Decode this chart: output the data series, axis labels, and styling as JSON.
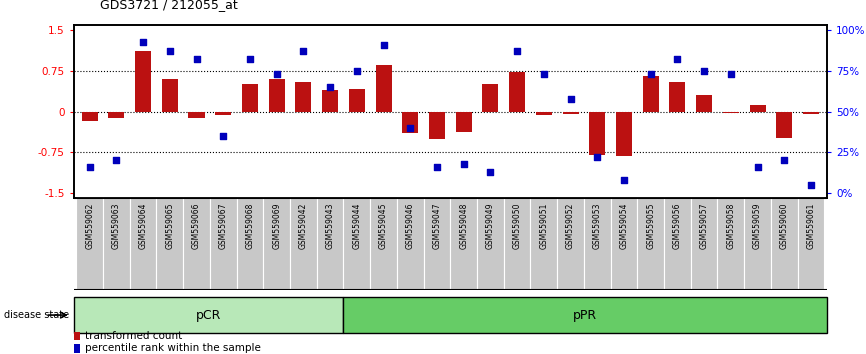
{
  "title": "GDS3721 / 212055_at",
  "samples": [
    "GSM559062",
    "GSM559063",
    "GSM559064",
    "GSM559065",
    "GSM559066",
    "GSM559067",
    "GSM559068",
    "GSM559069",
    "GSM559042",
    "GSM559043",
    "GSM559044",
    "GSM559045",
    "GSM559046",
    "GSM559047",
    "GSM559048",
    "GSM559049",
    "GSM559050",
    "GSM559051",
    "GSM559052",
    "GSM559053",
    "GSM559054",
    "GSM559055",
    "GSM559056",
    "GSM559057",
    "GSM559058",
    "GSM559059",
    "GSM559060",
    "GSM559061"
  ],
  "transformed_count": [
    -0.18,
    -0.12,
    1.12,
    0.6,
    -0.12,
    -0.06,
    0.5,
    0.6,
    0.55,
    0.4,
    0.42,
    0.85,
    -0.4,
    -0.5,
    -0.38,
    0.5,
    0.72,
    -0.06,
    -0.04,
    -0.8,
    -0.82,
    0.65,
    0.55,
    0.3,
    -0.02,
    0.12,
    -0.48,
    -0.04
  ],
  "percentile_rank": [
    16,
    20,
    93,
    87,
    82,
    35,
    82,
    73,
    87,
    65,
    75,
    91,
    40,
    16,
    18,
    13,
    87,
    73,
    58,
    22,
    8,
    73,
    82,
    75,
    73,
    16,
    20,
    5
  ],
  "pCR_count": 10,
  "pPR_count": 18,
  "pCR_color": "#b8e8b8",
  "pPR_color": "#66cc66",
  "bar_color": "#bb1111",
  "dot_color": "#0000bb",
  "ylim": [
    -1.6,
    1.6
  ],
  "yticks_left": [
    -1.5,
    -0.75,
    0,
    0.75,
    1.5
  ],
  "yticks_right_vals": [
    0,
    25,
    50,
    75,
    100
  ],
  "dotted_lines": [
    -0.75,
    0,
    0.75
  ],
  "bg_color": "#ffffff",
  "label_bg": "#c8c8c8",
  "bar_width": 0.6
}
